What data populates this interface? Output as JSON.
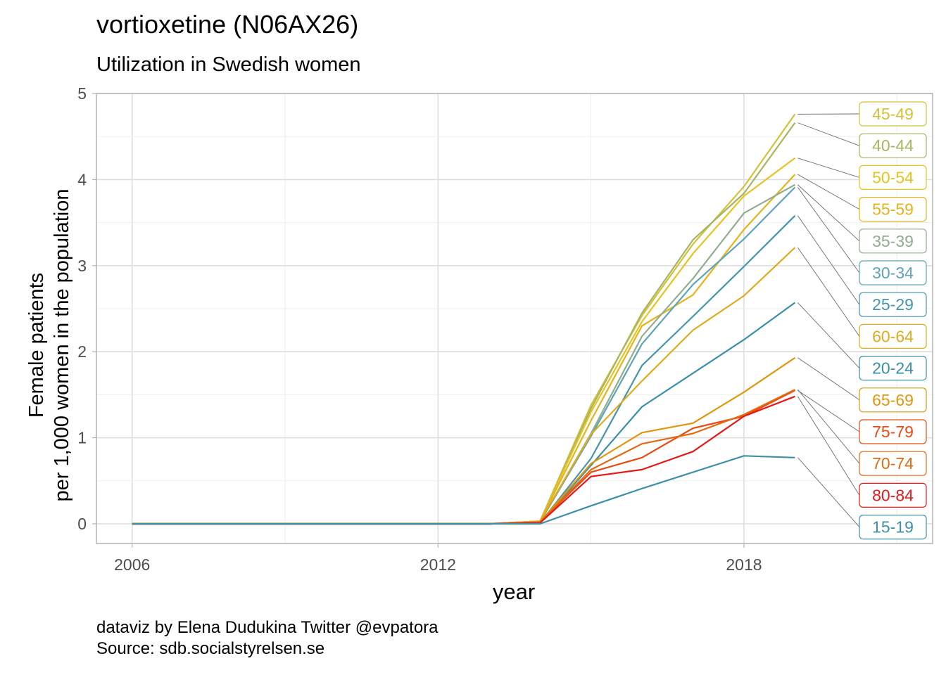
{
  "chart_data": {
    "type": "line",
    "title": "vortioxetine (N06AX26)",
    "subtitle": "Utilization in Swedish women",
    "xlabel": "year",
    "ylabel": [
      "Female patients",
      "per 1,000 women in the population"
    ],
    "caption": [
      "dataviz by Elena Dudukina Twitter @evpatora",
      "Source: sdb.socialstyrelsen.se"
    ],
    "xlim": [
      2005.3,
      2021.7
    ],
    "ylim": [
      0,
      5
    ],
    "x_ticks": [
      2006,
      2012,
      2018
    ],
    "y_ticks": [
      0,
      1,
      2,
      3,
      4,
      5
    ],
    "grid": true,
    "legend": "direct-labels-right",
    "x": [
      2006,
      2007,
      2008,
      2009,
      2010,
      2011,
      2012,
      2013,
      2014,
      2015,
      2016,
      2017,
      2018,
      2019
    ],
    "series": [
      {
        "name": "45-49",
        "color": "#d4c13a",
        "values": [
          0,
          0,
          0,
          0,
          0,
          0,
          0,
          0,
          0.03,
          1.38,
          2.42,
          3.25,
          3.92,
          4.76
        ]
      },
      {
        "name": "40-44",
        "color": "#a8b560",
        "values": [
          0,
          0,
          0,
          0,
          0,
          0,
          0,
          0,
          0.03,
          1.34,
          2.45,
          3.3,
          3.84,
          4.66
        ]
      },
      {
        "name": "50-54",
        "color": "#e8c320",
        "values": [
          0,
          0,
          0,
          0,
          0,
          0,
          0,
          0,
          0.03,
          1.3,
          2.35,
          3.14,
          3.81,
          4.25
        ]
      },
      {
        "name": "55-59",
        "color": "#e8b21a",
        "values": [
          0,
          0,
          0,
          0,
          0,
          0,
          0,
          0,
          0.03,
          1.2,
          2.3,
          2.66,
          3.42,
          4.06
        ]
      },
      {
        "name": "35-39",
        "color": "#8eae8c",
        "values": [
          0,
          0,
          0,
          0,
          0,
          0,
          0,
          0,
          0.02,
          1.05,
          2.18,
          2.85,
          3.61,
          3.94
        ]
      },
      {
        "name": "30-34",
        "color": "#5ea3b8",
        "values": [
          0,
          0,
          0,
          0,
          0,
          0,
          0,
          0,
          0.02,
          1.02,
          2.09,
          2.78,
          3.31,
          3.91
        ]
      },
      {
        "name": "25-29",
        "color": "#4595ad",
        "values": [
          0,
          0,
          0,
          0,
          0,
          0,
          0,
          0,
          0.01,
          0.76,
          1.84,
          2.41,
          2.99,
          3.58
        ]
      },
      {
        "name": "60-64",
        "color": "#e0ab1e",
        "values": [
          0,
          0,
          0,
          0,
          0,
          0,
          0,
          0,
          0.03,
          1.04,
          1.66,
          2.25,
          2.65,
          3.21
        ]
      },
      {
        "name": "20-24",
        "color": "#3a8fa8",
        "values": [
          0,
          0,
          0,
          0,
          0,
          0,
          0,
          0,
          0.01,
          0.68,
          1.36,
          1.75,
          2.14,
          2.57
        ]
      },
      {
        "name": "65-69",
        "color": "#e1960e",
        "values": [
          0,
          0,
          0,
          0,
          0,
          0,
          0,
          0,
          0.02,
          0.7,
          1.06,
          1.17,
          1.53,
          1.93
        ]
      },
      {
        "name": "75-79",
        "color": "#e84a12",
        "values": [
          0,
          0,
          0,
          0,
          0,
          0,
          0,
          0,
          0.02,
          0.6,
          0.77,
          1.11,
          1.25,
          1.55
        ]
      },
      {
        "name": "70-74",
        "color": "#e26a10",
        "values": [
          0,
          0,
          0,
          0,
          0,
          0,
          0,
          0,
          0.02,
          0.63,
          0.93,
          1.05,
          1.27,
          1.56
        ]
      },
      {
        "name": "80-84",
        "color": "#e81818",
        "values": [
          0,
          0,
          0,
          0,
          0,
          0,
          0,
          0,
          0.01,
          0.55,
          0.63,
          0.84,
          1.25,
          1.48
        ]
      },
      {
        "name": "15-19",
        "color": "#3f8fa6",
        "values": [
          0,
          0,
          0,
          0,
          0,
          0,
          0,
          0,
          0.0,
          0.21,
          0.41,
          0.6,
          0.79,
          0.77
        ]
      }
    ]
  }
}
